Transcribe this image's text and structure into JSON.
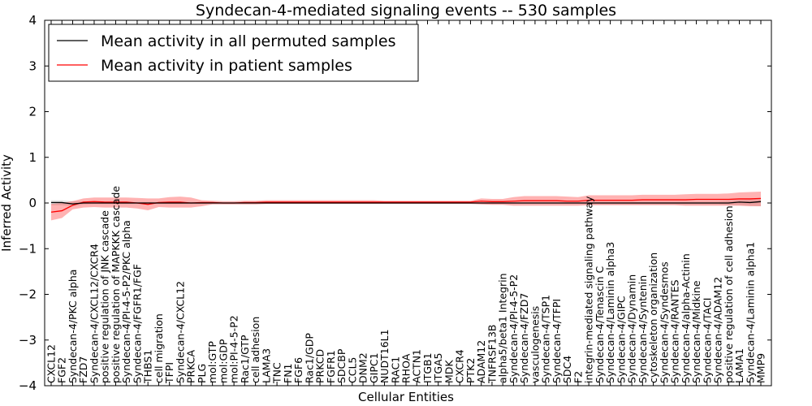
{
  "chart_data": {
    "type": "line",
    "title": "Syndecan-4-mediated signaling events -- 530 samples",
    "xlabel": "Cellular Entities",
    "ylabel": "Inferred Activity",
    "ylim": [
      -4,
      4
    ],
    "yticks": [
      "−4",
      "−3",
      "−2",
      "−1",
      "0",
      "1",
      "2",
      "3",
      "4"
    ],
    "ytick_values": [
      -4,
      -3,
      -2,
      -1,
      0,
      1,
      2,
      3,
      4
    ],
    "legend": {
      "placement": "top-left",
      "entries": [
        {
          "label": "Mean activity in all permuted samples",
          "color": "#000000"
        },
        {
          "label": "Mean activity in patient samples",
          "color": "#ff0000"
        }
      ]
    },
    "categories": [
      "CXCL12",
      "FGF2",
      "Syndecan-4/PKC alpha",
      "FZD7",
      "Syndecan-4/CXCL12/CXCR4",
      "positive regulation of JNK cascade",
      "positive regulation of MAPKKK cascade",
      "Syndecan-4/PI-4-5-P2/PKC alpha",
      "Syndecan-4/FGFR1/FGF",
      "THBS1",
      "cell migration",
      "TFPI",
      "Syndecan-4/CXCL12",
      "PRKCA",
      "PLG",
      "mol:GTP",
      "mol:GDP",
      "mol:PI-4-5-P2",
      "Rac1/GTP",
      "cell adhesion",
      "LAMA3",
      "TNC",
      "FN1",
      "FGF6",
      "Rac1/GDP",
      "PRKCD",
      "FGFR1",
      "SDCBP",
      "CCL5",
      "DNM2",
      "GIPC1",
      "NUDT16L1",
      "RAC1",
      "RHOA",
      "ACTN1",
      "ITGB1",
      "ITGA5",
      "MDK",
      "CXCR4",
      "PTK2",
      "ADAM12",
      "TNFRSF13B",
      "alpha5/beta1 Integrin",
      "Syndecan-4/PI-4-5-P2",
      "Syndecan-4/FZD7",
      "vasculogenesis",
      "Syndecan-4/TSP1",
      "Syndecan-4/TFPI",
      "SDC4",
      "F2",
      "integrin-mediated signaling pathway",
      "Syndecan-4/Tenascin C",
      "Syndecan-4/Laminin alpha3",
      "Syndecan-4/GIPC",
      "Syndecan-4/Dynamin",
      "Syndecan-4/Syntenin",
      "cytoskeleton organization",
      "Syndecan-4/Syndesmos",
      "Syndecan-4/RANTES",
      "Syndecan-4/alpha-Actinin",
      "Syndecan-4/Midkine",
      "Syndecan-4/TACI",
      "Syndecan-4/ADAM12",
      "positive regulation of cell adhesion",
      "LAMA1",
      "Syndecan-4/Laminin alpha1",
      "MMP9"
    ],
    "series": [
      {
        "name": "Mean activity in all permuted samples",
        "color": "#000000",
        "values": [
          0.01,
          0.01,
          -0.02,
          0.0,
          0.0,
          0.0,
          0.0,
          0.0,
          0.0,
          0.0,
          0.0,
          0.0,
          0.0,
          0.0,
          0.0,
          0.0,
          0.0,
          0.0,
          0.0,
          0.0,
          0.0,
          0.0,
          0.0,
          0.0,
          0.0,
          0.0,
          0.0,
          0.0,
          0.0,
          0.0,
          0.0,
          0.0,
          0.0,
          0.0,
          0.0,
          0.0,
          0.0,
          0.0,
          0.0,
          0.0,
          0.0,
          0.0,
          0.0,
          0.0,
          0.0,
          0.0,
          0.0,
          0.0,
          0.0,
          0.0,
          0.0,
          0.0,
          0.0,
          0.0,
          0.0,
          0.0,
          0.0,
          0.0,
          0.0,
          0.0,
          0.0,
          0.0,
          0.0,
          0.0,
          0.02,
          0.01,
          0.03
        ],
        "lower": [
          -0.05,
          -0.05,
          -0.07,
          -0.03,
          -0.02,
          -0.02,
          -0.02,
          -0.02,
          -0.02,
          -0.02,
          -0.02,
          -0.02,
          -0.02,
          -0.02,
          -0.02,
          -0.01,
          -0.01,
          -0.01,
          -0.01,
          -0.01,
          -0.01,
          -0.01,
          -0.01,
          -0.01,
          -0.01,
          -0.01,
          -0.01,
          -0.01,
          -0.01,
          -0.01,
          -0.01,
          -0.01,
          -0.01,
          -0.01,
          -0.01,
          -0.01,
          -0.01,
          -0.01,
          -0.01,
          -0.01,
          -0.02,
          -0.02,
          -0.02,
          -0.02,
          -0.02,
          -0.02,
          -0.02,
          -0.02,
          -0.02,
          -0.02,
          -0.03,
          -0.03,
          -0.03,
          -0.03,
          -0.03,
          -0.03,
          -0.03,
          -0.03,
          -0.03,
          -0.03,
          -0.03,
          -0.03,
          -0.03,
          -0.04,
          -0.05,
          -0.06,
          -0.07
        ],
        "upper": [
          0.06,
          0.06,
          0.04,
          0.03,
          0.02,
          0.02,
          0.02,
          0.02,
          0.02,
          0.02,
          0.02,
          0.02,
          0.02,
          0.02,
          0.02,
          0.01,
          0.01,
          0.01,
          0.01,
          0.01,
          0.01,
          0.01,
          0.01,
          0.01,
          0.01,
          0.01,
          0.01,
          0.01,
          0.01,
          0.01,
          0.01,
          0.01,
          0.01,
          0.01,
          0.01,
          0.01,
          0.01,
          0.01,
          0.01,
          0.01,
          0.02,
          0.02,
          0.02,
          0.02,
          0.02,
          0.02,
          0.02,
          0.02,
          0.02,
          0.02,
          0.03,
          0.03,
          0.03,
          0.03,
          0.03,
          0.03,
          0.03,
          0.03,
          0.03,
          0.03,
          0.03,
          0.03,
          0.03,
          0.05,
          0.07,
          0.08,
          0.1
        ]
      },
      {
        "name": "Mean activity in patient samples",
        "color": "#ff0000",
        "values": [
          -0.2,
          -0.17,
          -0.05,
          0.02,
          0.03,
          0.02,
          0.02,
          0.02,
          0.0,
          -0.03,
          0.01,
          0.02,
          0.02,
          0.0,
          0.01,
          0.01,
          0.0,
          0.0,
          0.01,
          0.01,
          0.02,
          0.02,
          0.02,
          0.02,
          0.02,
          0.02,
          0.02,
          0.02,
          0.02,
          0.02,
          0.02,
          0.02,
          0.02,
          0.02,
          0.02,
          0.02,
          0.02,
          0.02,
          0.02,
          0.02,
          0.04,
          0.03,
          0.03,
          0.04,
          0.05,
          0.05,
          0.05,
          0.05,
          0.04,
          0.04,
          0.06,
          0.06,
          0.06,
          0.06,
          0.06,
          0.07,
          0.07,
          0.07,
          0.07,
          0.07,
          0.08,
          0.08,
          0.08,
          0.08,
          0.09,
          0.09,
          0.1
        ],
        "lower": [
          -0.38,
          -0.33,
          -0.14,
          -0.1,
          -0.09,
          -0.1,
          -0.1,
          -0.1,
          -0.12,
          -0.16,
          -0.09,
          -0.1,
          -0.1,
          -0.1,
          -0.07,
          -0.03,
          -0.03,
          -0.03,
          -0.03,
          -0.03,
          -0.02,
          -0.02,
          -0.02,
          -0.02,
          -0.02,
          -0.02,
          -0.02,
          -0.02,
          -0.02,
          -0.02,
          -0.02,
          -0.02,
          -0.02,
          -0.02,
          -0.02,
          -0.02,
          -0.02,
          -0.02,
          -0.02,
          -0.02,
          -0.03,
          -0.04,
          -0.04,
          -0.06,
          -0.06,
          -0.06,
          -0.06,
          -0.06,
          -0.06,
          -0.06,
          -0.05,
          -0.05,
          -0.05,
          -0.05,
          -0.05,
          -0.05,
          -0.05,
          -0.05,
          -0.05,
          -0.06,
          -0.06,
          -0.06,
          -0.06,
          -0.06,
          -0.06,
          -0.07,
          -0.07
        ],
        "upper": [
          -0.02,
          0.0,
          0.04,
          0.1,
          0.12,
          0.12,
          0.12,
          0.12,
          0.11,
          0.1,
          0.1,
          0.13,
          0.14,
          0.12,
          0.06,
          0.05,
          0.04,
          0.04,
          0.05,
          0.05,
          0.06,
          0.06,
          0.06,
          0.06,
          0.06,
          0.06,
          0.06,
          0.06,
          0.06,
          0.06,
          0.06,
          0.05,
          0.05,
          0.05,
          0.05,
          0.05,
          0.05,
          0.05,
          0.05,
          0.05,
          0.1,
          0.09,
          0.09,
          0.13,
          0.15,
          0.15,
          0.15,
          0.15,
          0.14,
          0.13,
          0.17,
          0.17,
          0.17,
          0.17,
          0.17,
          0.18,
          0.18,
          0.18,
          0.18,
          0.19,
          0.2,
          0.2,
          0.2,
          0.21,
          0.23,
          0.24,
          0.25
        ]
      }
    ]
  }
}
